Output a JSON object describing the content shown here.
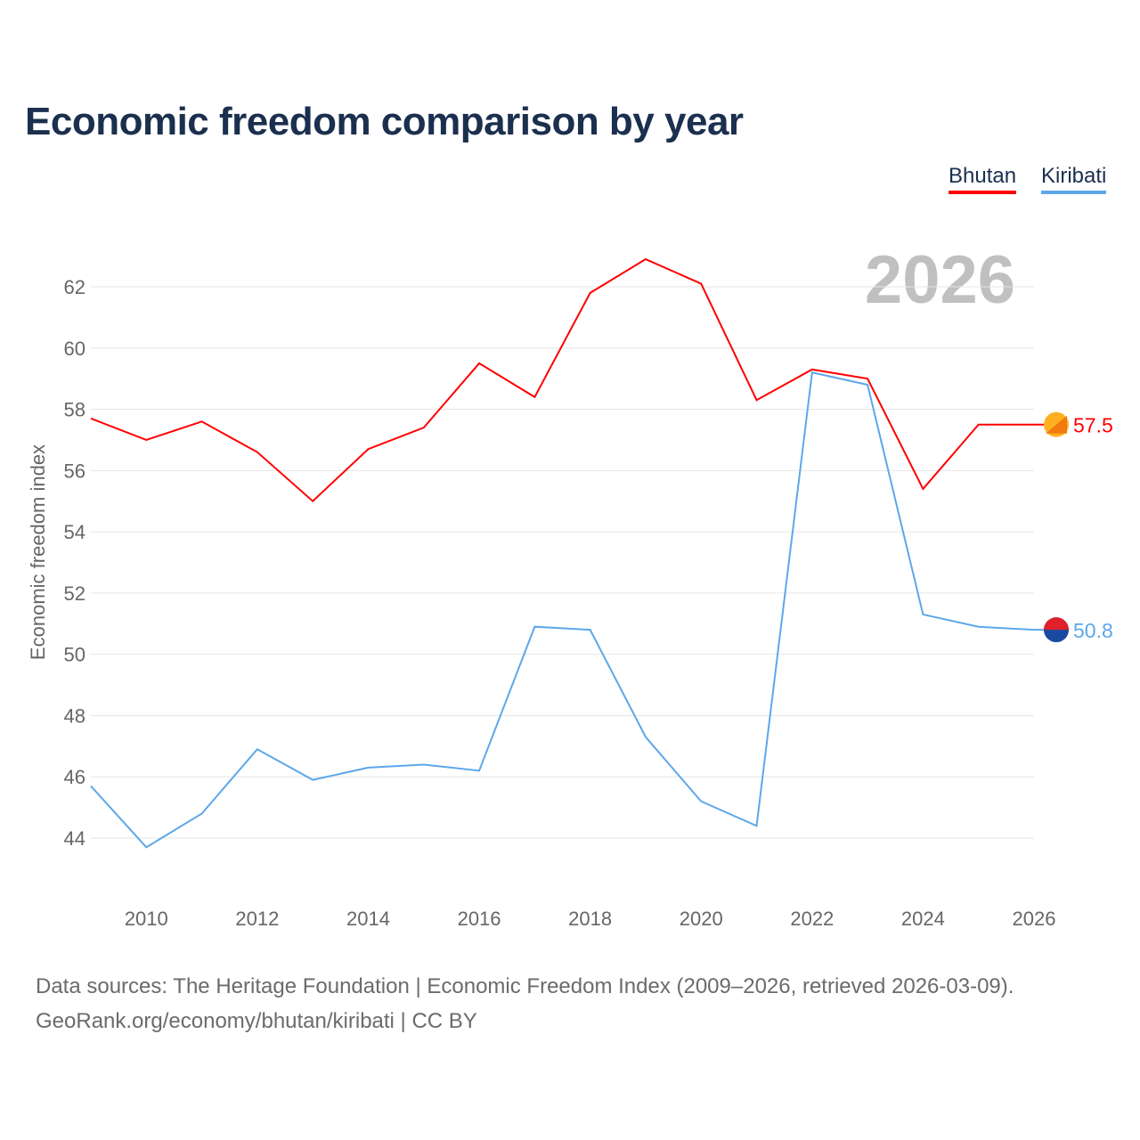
{
  "title": "Economic freedom comparison by year",
  "legend": [
    {
      "label": "Bhutan",
      "color": "#ff0000"
    },
    {
      "label": "Kiribati",
      "color": "#5da7ea"
    }
  ],
  "footer": {
    "line1": "Data sources: The Heritage Foundation | Economic Freedom Index (2009–2026, retrieved 2026-03-09).",
    "line2": "GeoRank.org/economy/bhutan/kiribati | CC BY"
  },
  "chart_data": {
    "type": "line",
    "title": "Economic freedom comparison by year",
    "ylabel": "Economic freedom index",
    "xlabel": "",
    "year_watermark": "2026",
    "x": [
      2009,
      2010,
      2011,
      2012,
      2013,
      2014,
      2015,
      2016,
      2017,
      2018,
      2019,
      2020,
      2021,
      2022,
      2023,
      2024,
      2025,
      2026
    ],
    "xlim": [
      2009,
      2026
    ],
    "ylim": [
      42.2,
      63.5
    ],
    "xticks": [
      "2010",
      "2012",
      "2014",
      "2016",
      "2018",
      "2020",
      "2022",
      "2024",
      "2026"
    ],
    "yticks": [
      "44",
      "46",
      "48",
      "50",
      "52",
      "54",
      "56",
      "58",
      "60",
      "62"
    ],
    "grid": true,
    "legend_position": "top-right",
    "series": [
      {
        "name": "Bhutan",
        "color": "#ff0000",
        "end_label": "57.5",
        "values": [
          57.7,
          57.0,
          57.6,
          56.6,
          55.0,
          56.7,
          57.4,
          59.5,
          58.4,
          61.8,
          62.9,
          62.1,
          58.3,
          59.3,
          59.0,
          55.4,
          57.5,
          57.5
        ]
      },
      {
        "name": "Kiribati",
        "color": "#5da7ea",
        "end_label": "50.8",
        "values": [
          45.7,
          43.7,
          44.8,
          46.9,
          45.9,
          46.3,
          46.4,
          46.2,
          50.9,
          50.8,
          47.3,
          45.2,
          44.4,
          59.2,
          58.8,
          51.3,
          50.9,
          50.8
        ]
      }
    ]
  }
}
